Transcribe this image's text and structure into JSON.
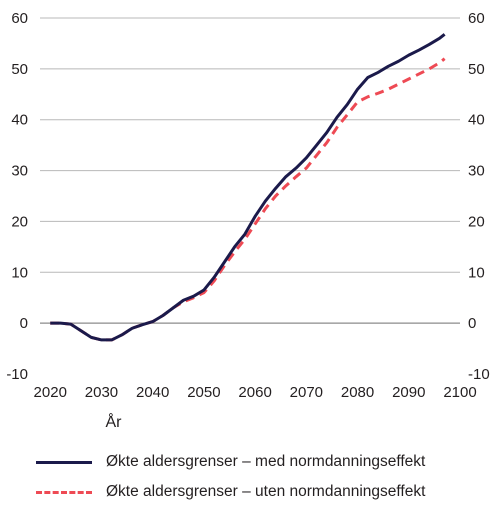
{
  "chart_data": {
    "type": "line",
    "xlabel": "År",
    "ylabel": "",
    "xlim": [
      2018,
      2100
    ],
    "ylim": [
      -10,
      60
    ],
    "x_ticks": [
      2020,
      2030,
      2040,
      2050,
      2060,
      2070,
      2080,
      2090,
      2100
    ],
    "y_ticks": [
      -10,
      0,
      10,
      20,
      30,
      40,
      50,
      60
    ],
    "y_tick_labels": [
      "-10",
      "0",
      "10",
      "20",
      "30",
      "40",
      "50",
      "60"
    ],
    "grid": "horizontal",
    "legend_position": "bottom",
    "series": [
      {
        "name": "Økte aldersgrenser – med normdanningseffekt",
        "color": "#1b1a4b",
        "style": "solid",
        "x": [
          2020,
          2022,
          2024,
          2026,
          2028,
          2030,
          2032,
          2034,
          2036,
          2038,
          2040,
          2042,
          2044,
          2046,
          2048,
          2050,
          2052,
          2054,
          2056,
          2058,
          2060,
          2062,
          2064,
          2066,
          2068,
          2070,
          2072,
          2074,
          2076,
          2078,
          2080,
          2082,
          2084,
          2086,
          2088,
          2090,
          2092,
          2094,
          2096,
          2097
        ],
        "y": [
          0,
          0,
          -0.2,
          -1.5,
          -2.8,
          -3.3,
          -3.3,
          -2.3,
          -1,
          -0.3,
          0.3,
          1.5,
          3,
          4.5,
          5.3,
          6.5,
          9,
          12,
          15,
          17.5,
          21,
          24,
          26.5,
          28.8,
          30.5,
          32.5,
          35,
          37.5,
          40.5,
          43,
          46,
          48.3,
          49.3,
          50.5,
          51.5,
          52.7,
          53.7,
          54.8,
          56,
          56.8
        ]
      },
      {
        "name": "Økte aldersgrenser – uten normdanningseffekt",
        "color": "#ee4a54",
        "style": "dashed",
        "x": [
          2020,
          2022,
          2024,
          2026,
          2028,
          2030,
          2032,
          2034,
          2036,
          2038,
          2040,
          2042,
          2044,
          2046,
          2048,
          2050,
          2052,
          2054,
          2056,
          2058,
          2060,
          2062,
          2064,
          2066,
          2068,
          2070,
          2072,
          2074,
          2076,
          2078,
          2080,
          2082,
          2084,
          2086,
          2088,
          2090,
          2092,
          2094,
          2096,
          2097
        ],
        "y": [
          0,
          0,
          -0.2,
          -1.5,
          -2.8,
          -3.3,
          -3.3,
          -2.3,
          -1,
          -0.3,
          0.3,
          1.5,
          3,
          4.2,
          5,
          6,
          8.3,
          11.3,
          14,
          16.5,
          19.5,
          22.5,
          25,
          27,
          28.8,
          30.5,
          33,
          35.5,
          38.5,
          41,
          43.5,
          44.5,
          45.2,
          46,
          47,
          48,
          49,
          50,
          51.2,
          52
        ]
      }
    ]
  }
}
